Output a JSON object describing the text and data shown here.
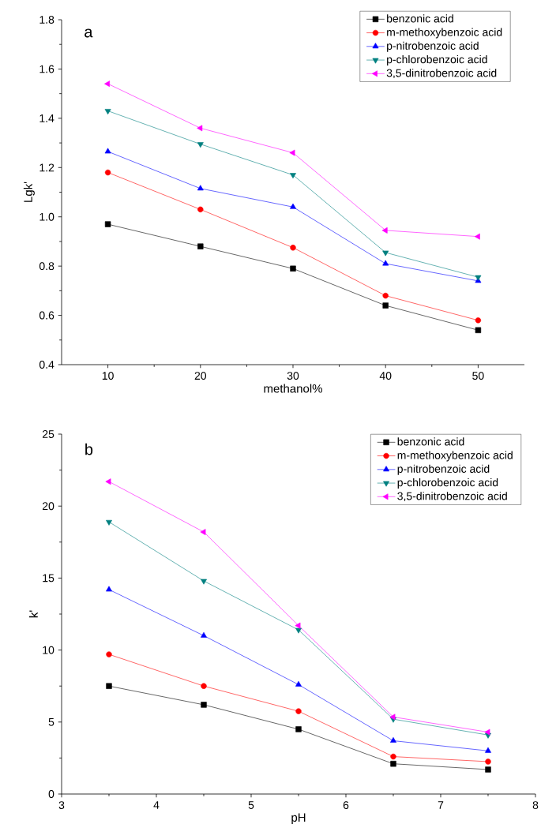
{
  "chart_data": [
    {
      "type": "line",
      "title": "a",
      "xlabel": "methanol%",
      "ylabel": "Lgk'",
      "x": [
        10,
        20,
        30,
        40,
        50
      ],
      "xlim": [
        5,
        55
      ],
      "xticks": [
        10,
        20,
        30,
        40,
        50
      ],
      "ylim": [
        0.4,
        1.8
      ],
      "yticks": [
        0.4,
        0.6,
        0.8,
        {
          "value": 1,
          "label": "1.0"
        },
        1.2,
        1.4,
        1.6,
        1.8
      ],
      "legend": "top right",
      "grid": false,
      "series": [
        {
          "name": "benzonic acid",
          "color": "#000000",
          "marker": "square",
          "values": [
            0.97,
            0.88,
            0.79,
            0.64,
            0.54
          ]
        },
        {
          "name": "m-methoxybenzoic acid",
          "color": "#ff0000",
          "marker": "circle",
          "values": [
            1.18,
            1.03,
            0.875,
            0.68,
            0.58
          ]
        },
        {
          "name": "p-nitrobenzoic acid",
          "color": "#0000ff",
          "marker": "triangle",
          "values": [
            1.265,
            1.115,
            1.04,
            0.81,
            0.74
          ]
        },
        {
          "name": "p-chlorobenzoic acid",
          "color": "#008080",
          "marker": "triangle",
          "values": [
            1.43,
            1.295,
            1.17,
            0.855,
            0.755
          ]
        },
        {
          "name": "3,5-dinitrobenzoic acid",
          "color": "#ff00ff",
          "marker": "triangle",
          "values": [
            1.54,
            1.36,
            1.26,
            0.945,
            0.92
          ]
        }
      ]
    },
    {
      "type": "line",
      "title": "b",
      "xlabel": "pH",
      "ylabel": "k'",
      "x": [
        3.5,
        4.5,
        5.5,
        6.5,
        7.5
      ],
      "xlim": [
        3,
        8
      ],
      "xticks": [
        3,
        4,
        5,
        6,
        7,
        8
      ],
      "ylim": [
        0,
        25
      ],
      "yticks": [
        0,
        5,
        10,
        15,
        20,
        25
      ],
      "legend": "top right",
      "grid": false,
      "series": [
        {
          "name": "benzonic acid",
          "color": "#000000",
          "marker": "square",
          "values": [
            7.5,
            6.2,
            4.5,
            2.1,
            1.7
          ]
        },
        {
          "name": "m-methoxybenzoic acid",
          "color": "#ff0000",
          "marker": "circle",
          "values": [
            9.7,
            7.5,
            5.75,
            2.6,
            2.25
          ]
        },
        {
          "name": "p-nitrobenzoic acid",
          "color": "#0000ff",
          "marker": "triangle",
          "values": [
            14.2,
            11.0,
            7.6,
            3.7,
            3.0
          ]
        },
        {
          "name": "p-chlorobenzoic acid",
          "color": "#008080",
          "marker": "triangle",
          "values": [
            18.9,
            14.8,
            11.4,
            5.2,
            4.1
          ]
        },
        {
          "name": "3,5-dinitrobenzoic acid",
          "color": "#ff00ff",
          "marker": "triangle",
          "values": [
            21.7,
            18.2,
            11.7,
            5.35,
            4.3
          ]
        }
      ]
    }
  ]
}
